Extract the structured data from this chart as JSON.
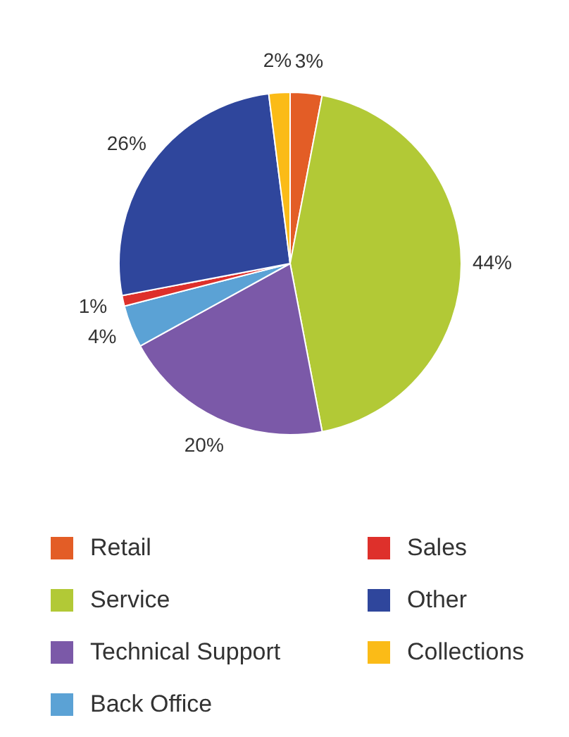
{
  "chart_data": {
    "type": "pie",
    "categories": [
      "Retail",
      "Service",
      "Technical Support",
      "Back Office",
      "Sales",
      "Other",
      "Collections"
    ],
    "values": [
      3,
      44,
      20,
      4,
      1,
      26,
      2
    ],
    "colors": [
      "#e35d26",
      "#b2c936",
      "#7b59a8",
      "#5ba2d5",
      "#de302b",
      "#2f469c",
      "#fbbb17"
    ],
    "value_labels": [
      "3%",
      "44%",
      "20%",
      "4%",
      "1%",
      "26%",
      "2%"
    ],
    "legend": "bottom"
  }
}
